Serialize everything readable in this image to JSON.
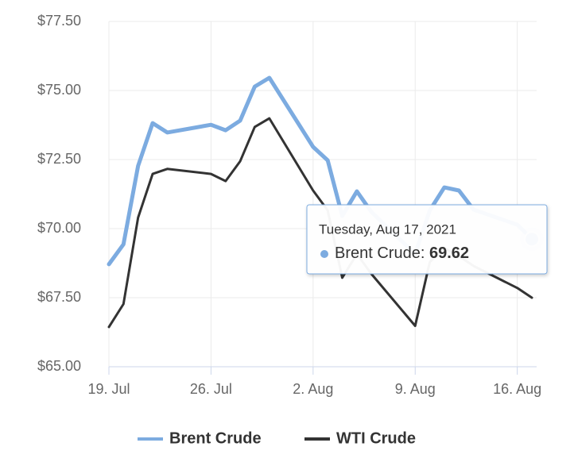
{
  "chart_data": {
    "type": "line",
    "x": [
      "2021-07-19",
      "2021-07-20",
      "2021-07-21",
      "2021-07-22",
      "2021-07-23",
      "2021-07-26",
      "2021-07-27",
      "2021-07-28",
      "2021-07-29",
      "2021-07-30",
      "2021-08-02",
      "2021-08-03",
      "2021-08-04",
      "2021-08-05",
      "2021-08-06",
      "2021-08-09",
      "2021-08-10",
      "2021-08-11",
      "2021-08-12",
      "2021-08-13",
      "2021-08-16",
      "2021-08-17"
    ],
    "series": [
      {
        "name": "Brent Crude",
        "color": "#7cabe0",
        "values": [
          68.71,
          69.43,
          72.27,
          73.82,
          73.48,
          73.76,
          73.56,
          73.91,
          75.14,
          75.46,
          72.96,
          72.47,
          70.46,
          71.35,
          70.6,
          69.08,
          70.66,
          71.49,
          71.38,
          70.69,
          70.14,
          69.62
        ]
      },
      {
        "name": "WTI Crude",
        "color": "#333333",
        "values": [
          66.44,
          67.27,
          70.4,
          71.98,
          72.16,
          71.98,
          71.72,
          72.44,
          73.68,
          73.99,
          71.38,
          70.66,
          68.22,
          69.08,
          68.36,
          66.48,
          68.79,
          69.3,
          69.0,
          68.65,
          67.85,
          67.5
        ]
      }
    ],
    "xlim": [
      "2021-07-19",
      "2021-08-17"
    ],
    "xticks": [
      {
        "value": "2021-07-19",
        "label": "19. Jul"
      },
      {
        "value": "2021-07-26",
        "label": "26. Jul"
      },
      {
        "value": "2021-08-02",
        "label": "2. Aug"
      },
      {
        "value": "2021-08-09",
        "label": "9. Aug"
      },
      {
        "value": "2021-08-16",
        "label": "16. Aug"
      }
    ],
    "ylim": [
      65,
      77.5
    ],
    "yticks": [
      {
        "value": 65,
        "label": "$65.00"
      },
      {
        "value": 67.5,
        "label": "$67.50"
      },
      {
        "value": 70,
        "label": "$70.00"
      },
      {
        "value": 72.5,
        "label": "$72.50"
      },
      {
        "value": 75,
        "label": "$75.00"
      },
      {
        "value": 77.5,
        "label": "$77.50"
      }
    ],
    "grid": true,
    "legend": "bottom",
    "tooltip": {
      "title": "Tuesday, Aug 17, 2021",
      "series": 0,
      "index": 21
    }
  }
}
